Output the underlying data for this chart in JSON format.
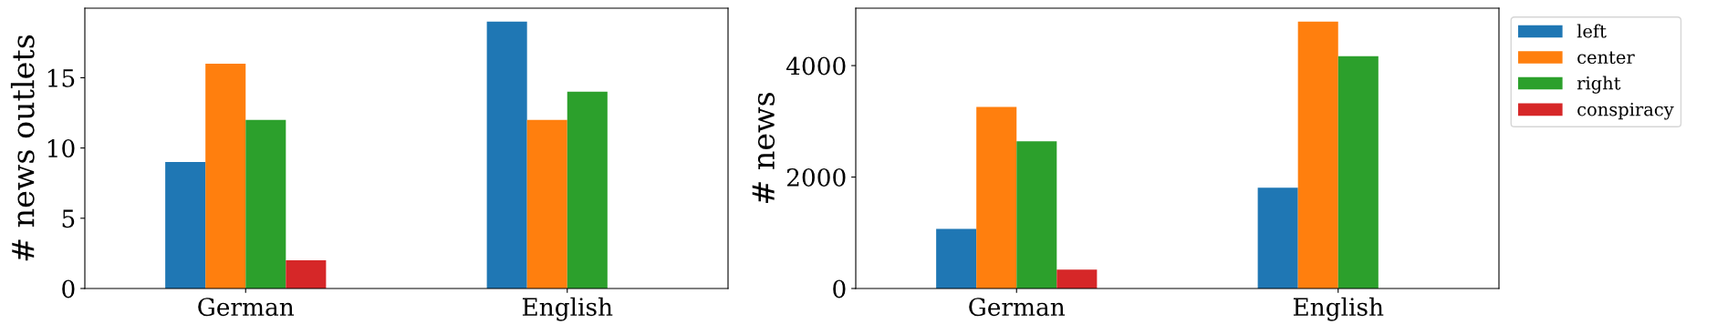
{
  "chart_data": [
    {
      "type": "bar",
      "ylabel": "# news outlets",
      "categories": [
        "German",
        "English"
      ],
      "series": [
        {
          "color": "#1f77b4",
          "values": [
            9,
            19
          ]
        },
        {
          "color": "#ff7f0e",
          "values": [
            16,
            12
          ]
        },
        {
          "color": "#2ca02c",
          "values": [
            12,
            14
          ]
        },
        {
          "color": "#d62728",
          "values": [
            2,
            null
          ]
        }
      ],
      "ylim": [
        0,
        19.95
      ],
      "yticks": [
        0,
        5,
        10,
        15
      ],
      "grid": false,
      "legend": false
    },
    {
      "type": "bar",
      "ylabel": "# news",
      "categories": [
        "German",
        "English"
      ],
      "series": [
        {
          "name": "left",
          "color": "#1f77b4",
          "values": [
            1070,
            1810
          ]
        },
        {
          "name": "center",
          "color": "#ff7f0e",
          "values": [
            3260,
            4790
          ]
        },
        {
          "name": "right",
          "color": "#2ca02c",
          "values": [
            2640,
            4170
          ]
        },
        {
          "name": "conspiracy",
          "color": "#d62728",
          "values": [
            340,
            null
          ]
        }
      ],
      "ylim": [
        0,
        5030
      ],
      "yticks": [
        0,
        2000,
        4000
      ],
      "grid": false,
      "legend": "top right"
    }
  ]
}
